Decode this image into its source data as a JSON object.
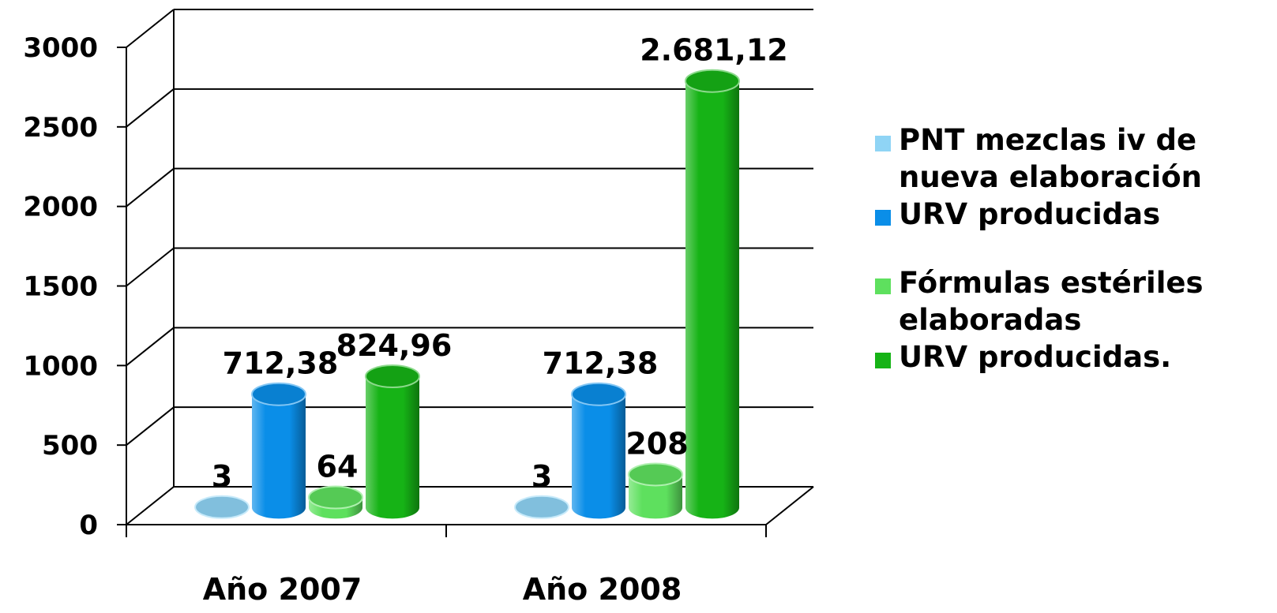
{
  "chart_data": {
    "type": "bar",
    "categories": [
      "Año 2007",
      "Año 2008"
    ],
    "series": [
      {
        "name": "PNT mezclas iv de nueva elaboración",
        "values": [
          3,
          3
        ],
        "labels": [
          "3",
          "3"
        ],
        "color": "#8fd4f5"
      },
      {
        "name": "URV producidas",
        "values": [
          712.38,
          712.38
        ],
        "labels": [
          "712,38",
          "712,38"
        ],
        "color": "#0a8ee8"
      },
      {
        "name": "Fórmulas estériles elaboradas",
        "values": [
          64,
          208
        ],
        "labels": [
          "64",
          "208"
        ],
        "color": "#5ee05e"
      },
      {
        "name": "URV producidas.",
        "values": [
          824.96,
          2681.12
        ],
        "labels": [
          "824,96",
          "2.681,12"
        ],
        "color": "#16b316"
      }
    ],
    "y_ticks": [
      "0",
      "500",
      "1000",
      "1500",
      "2000",
      "2500",
      "3000"
    ],
    "ylim": [
      0,
      3000
    ],
    "grid": true,
    "legend_position": "right",
    "three_d": true
  }
}
